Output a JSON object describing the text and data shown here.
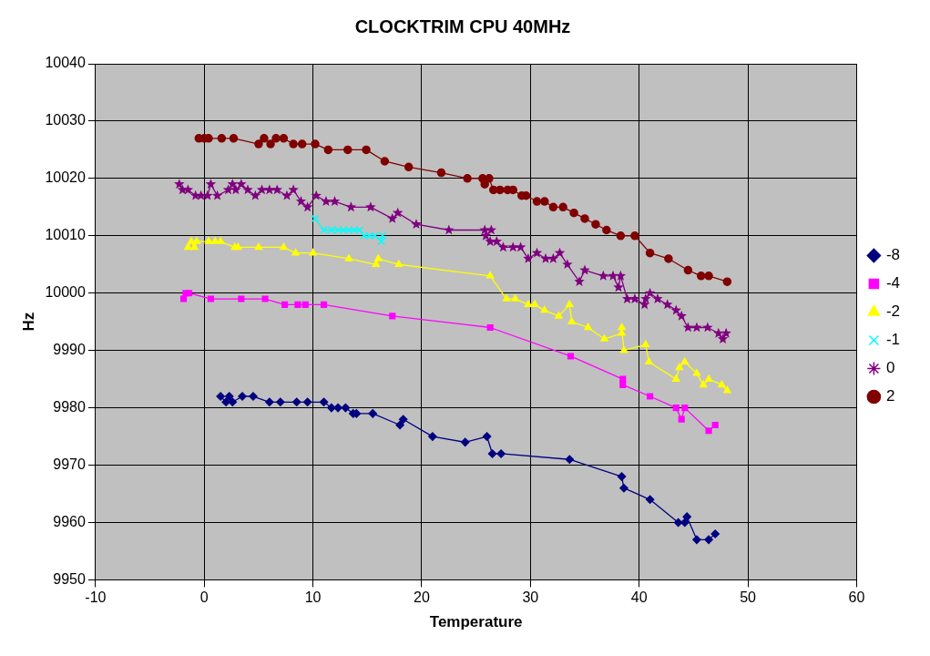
{
  "chart_data": {
    "type": "line",
    "title": "CLOCKTRIM CPU 40MHz",
    "xlabel": "Temperature",
    "ylabel": "Hz",
    "xlim": [
      -10,
      60
    ],
    "xticks": [
      -10,
      0,
      10,
      20,
      30,
      40,
      50,
      60
    ],
    "ylim": [
      9950,
      10040
    ],
    "yticks": [
      9950,
      9960,
      9970,
      9980,
      9990,
      10000,
      10010,
      10020,
      10030,
      10040
    ],
    "grid": true,
    "legend": "right",
    "line_style": "solid",
    "series": [
      {
        "name": "-8",
        "color": "#000080",
        "marker": "diamond",
        "x": [
          1.5,
          2.0,
          2.3,
          2.6,
          3.5,
          4.5,
          6,
          7,
          8.5,
          9.5,
          11,
          11.7,
          12.3,
          13,
          13.7,
          14,
          15.5,
          18,
          18.3,
          21,
          24,
          26,
          26.5,
          27.3,
          33.6,
          38.4,
          38.6,
          41,
          43.6,
          44.2,
          44.4,
          45.3,
          46.4,
          47
        ],
        "values": [
          9982,
          9981,
          9982,
          9981,
          9982,
          9982,
          9981,
          9981,
          9981,
          9981,
          9981,
          9980,
          9980,
          9980,
          9979,
          9979,
          9979,
          9977,
          9978,
          9975,
          9974,
          9975,
          9972,
          9972,
          9971,
          9968,
          9966,
          9964,
          9960,
          9960,
          9961,
          9957,
          9957,
          9958
        ]
      },
      {
        "name": "-4",
        "color": "#ff00ff",
        "marker": "square",
        "x": [
          -1.9,
          -1.7,
          -1.4,
          0.6,
          3.4,
          5.6,
          7.4,
          8.6,
          9.3,
          11,
          17.3,
          26.3,
          33.7,
          38.5,
          38.5,
          41,
          43.4,
          43.9,
          44.2,
          46.4,
          47
        ],
        "values": [
          9999,
          10000,
          10000,
          9999,
          9999,
          9999,
          9998,
          9998,
          9998,
          9998,
          9996,
          9994,
          9989,
          9985,
          9984,
          9982,
          9980,
          9978,
          9980,
          9976,
          9977
        ]
      },
      {
        "name": "-2",
        "color": "#ffff00",
        "marker": "triangle",
        "x": [
          -1.5,
          -1.2,
          -0.9,
          -0.7,
          0.4,
          1,
          1.5,
          2.8,
          3.1,
          5,
          7.3,
          8.4,
          10,
          13.3,
          15.8,
          16,
          17.9,
          26.3,
          27.8,
          28.6,
          29.8,
          30.4,
          31.3,
          32.6,
          33.6,
          33.8,
          35.3,
          36.8,
          38.4,
          38.4,
          38.6,
          40.6,
          40.9,
          43.4,
          43.7,
          44.2,
          45.3,
          45.9,
          46.4,
          47.6,
          48.1
        ],
        "values": [
          10008,
          10009,
          10008,
          10009,
          10009,
          10009,
          10009,
          10008,
          10008,
          10008,
          10008,
          10007,
          10007,
          10006,
          10005,
          10006,
          10005,
          10003,
          9999,
          9999,
          9998,
          9998,
          9997,
          9996,
          9998,
          9995,
          9994,
          9992,
          9993,
          9994,
          9990,
          9991,
          9988,
          9985,
          9987,
          9988,
          9986,
          9984,
          9985,
          9984,
          9983
        ]
      },
      {
        "name": "-1",
        "color": "#00ffff",
        "marker": "cross",
        "x": [
          10.2,
          11,
          11.7,
          12.3,
          12.8,
          13.3,
          13.8,
          14.3,
          14.7,
          15.2,
          15.7,
          16.3,
          16.4
        ],
        "values": [
          10013,
          10011,
          10011,
          10011,
          10011,
          10011,
          10011,
          10011,
          10010,
          10010,
          10010,
          10009,
          10010
        ]
      },
      {
        "name": "0",
        "color": "#800080",
        "marker": "star",
        "x": [
          -2.3,
          -2,
          -1.5,
          -0.8,
          -0.3,
          0.3,
          0.6,
          1.2,
          2.2,
          2.6,
          2.9,
          3.4,
          4,
          4.7,
          5.3,
          6,
          6.7,
          7.6,
          8.2,
          8.9,
          9.5,
          10.3,
          11.2,
          12,
          13.5,
          15.3,
          17.3,
          17.8,
          19.5,
          22.5,
          25.8,
          26.4,
          25.9,
          26.3,
          26.9,
          27.5,
          28.4,
          29.1,
          29.8,
          30.6,
          31.4,
          32.1,
          32.7,
          33.4,
          34.5,
          35,
          36.7,
          37.6,
          38.1,
          38.3,
          38.9,
          39.6,
          40.5,
          40.6,
          41,
          41.7,
          42.6,
          43.4,
          43.9,
          44.5,
          45.3,
          46.3,
          47.3,
          47.7,
          48
        ],
        "values": [
          10019,
          10018,
          10018,
          10017,
          10017,
          10017,
          10019,
          10017,
          10018,
          10019,
          10018,
          10019,
          10018,
          10017,
          10018,
          10018,
          10018,
          10017,
          10018,
          10016,
          10015,
          10017,
          10016,
          10016,
          10015,
          10015,
          10013,
          10014,
          10012,
          10011,
          10011,
          10011,
          10010,
          10009,
          10009,
          10008,
          10008,
          10008,
          10006,
          10007,
          10006,
          10006,
          10007,
          10005,
          10002,
          10004,
          10003,
          10003,
          10001,
          10003,
          9999,
          9999,
          9998,
          9999,
          10000,
          9999,
          9998,
          9997,
          9996,
          9994,
          9994,
          9994,
          9993,
          9992,
          9993
        ]
      },
      {
        "name": "2",
        "color": "#800000",
        "marker": "circle",
        "x": [
          -0.5,
          0,
          0.4,
          1.6,
          2.7,
          5,
          5.5,
          6.1,
          6.6,
          7.3,
          8.2,
          9,
          10.2,
          11.4,
          13.2,
          14.9,
          16.6,
          18.8,
          21.8,
          24.2,
          25.6,
          25.8,
          26.2,
          26.6,
          27.2,
          27.9,
          28.4,
          29.2,
          29.6,
          30.6,
          31.3,
          32.1,
          33,
          34,
          35,
          36,
          37,
          38.3,
          39.6,
          41,
          42.7,
          44.5,
          45.7,
          46.4,
          48.1
        ],
        "values": [
          10027,
          10027,
          10027,
          10027,
          10027,
          10026,
          10027,
          10026,
          10027,
          10027,
          10026,
          10026,
          10026,
          10025,
          10025,
          10025,
          10023,
          10022,
          10021,
          10020,
          10020,
          10019,
          10020,
          10018,
          10018,
          10018,
          10018,
          10017,
          10017,
          10016,
          10016,
          10015,
          10015,
          10014,
          10013,
          10012,
          10011,
          10010,
          10010,
          10007,
          10006,
          10004,
          10003,
          10003,
          10002
        ]
      }
    ]
  }
}
